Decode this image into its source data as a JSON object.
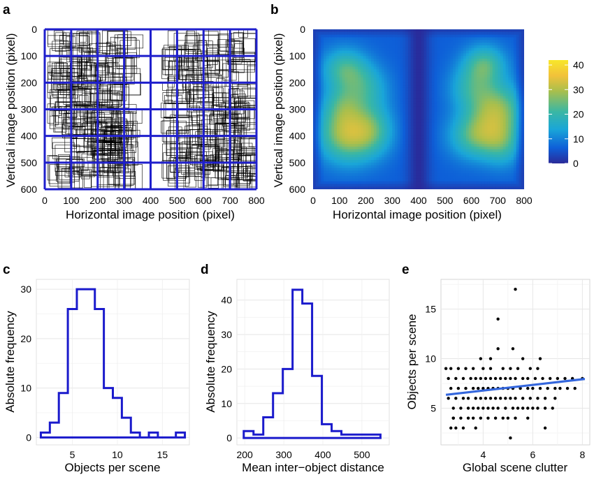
{
  "panel_labels": {
    "a": "a",
    "b": "b",
    "c": "c",
    "d": "d",
    "e": "e"
  },
  "colorbar": {
    "ticks": [
      "40",
      "30",
      "20",
      "10",
      "0"
    ],
    "max": 42
  },
  "chart_data": [
    {
      "panel": "a",
      "type": "scatter",
      "xlabel": "Horizontal image position (pixel)",
      "ylabel": "Vertical image position (pixel)",
      "xlim": [
        0,
        800
      ],
      "ylim": [
        600,
        0
      ],
      "xticks": [
        "0",
        "100",
        "200",
        "300",
        "400",
        "500",
        "600",
        "700",
        "800"
      ],
      "yticks": [
        "0",
        "100",
        "200",
        "300",
        "400",
        "500",
        "600"
      ],
      "grid_columns": [
        0,
        100,
        200,
        300,
        400,
        500,
        600,
        700,
        800
      ],
      "grid_rows": [
        0,
        100,
        200,
        300,
        400,
        500,
        600
      ],
      "grid_color": "#1f1fcc",
      "box_color": "#000000",
      "box_clusters": [
        {
          "x_range": [
            10,
            330
          ],
          "y_range": [
            0,
            580
          ]
        },
        {
          "x_range": [
            440,
            800
          ],
          "y_range": [
            0,
            590
          ]
        }
      ]
    },
    {
      "panel": "b",
      "type": "heatmap",
      "xlabel": "Horizontal image position (pixel)",
      "ylabel": "Vertical image position (pixel)",
      "xlim": [
        0,
        800
      ],
      "ylim": [
        600,
        0
      ],
      "xticks": [
        "0",
        "100",
        "200",
        "300",
        "400",
        "500",
        "600",
        "700",
        "800"
      ],
      "yticks": [
        "0",
        "100",
        "200",
        "300",
        "400",
        "500",
        "600"
      ],
      "value_range": [
        0,
        42
      ],
      "colorscale": [
        "#2a2a99",
        "#0e5fd8",
        "#1aa6d8",
        "#3ab7a4",
        "#a9bf4c",
        "#f2c23a",
        "#f8e72a"
      ],
      "hotspots": [
        {
          "x": 130,
          "y": 390,
          "sx": 75,
          "sy": 75,
          "value": 22
        },
        {
          "x": 120,
          "y": 150,
          "sx": 60,
          "sy": 55,
          "value": 14
        },
        {
          "x": 200,
          "y": 220,
          "sx": 60,
          "sy": 60,
          "value": 10
        },
        {
          "x": 230,
          "y": 380,
          "sx": 55,
          "sy": 65,
          "value": 10
        },
        {
          "x": 110,
          "y": 280,
          "sx": 50,
          "sy": 50,
          "value": 8
        },
        {
          "x": 650,
          "y": 130,
          "sx": 55,
          "sy": 50,
          "value": 14
        },
        {
          "x": 700,
          "y": 300,
          "sx": 70,
          "sy": 70,
          "value": 18
        },
        {
          "x": 620,
          "y": 400,
          "sx": 70,
          "sy": 60,
          "value": 16
        },
        {
          "x": 600,
          "y": 220,
          "sx": 60,
          "sy": 60,
          "value": 10
        },
        {
          "x": 720,
          "y": 430,
          "sx": 50,
          "sy": 60,
          "value": 10
        }
      ]
    },
    {
      "panel": "c",
      "type": "histogram",
      "xlabel": "Objects per scene",
      "ylabel": "Absolute frequency",
      "xlim": [
        1,
        18
      ],
      "ylim": [
        -1.5,
        32
      ],
      "xticks": [
        "5",
        "10",
        "15"
      ],
      "yticks": [
        "0",
        "10",
        "20",
        "30"
      ],
      "bin_width": 1,
      "bin_centers": [
        2,
        3,
        4,
        5,
        6,
        7,
        8,
        9,
        10,
        11,
        12,
        13,
        14,
        15,
        16,
        17
      ],
      "counts": [
        1,
        3,
        9,
        26,
        30,
        30,
        26,
        10,
        8,
        4,
        1,
        0,
        1,
        0,
        0,
        1
      ],
      "color": "#1a1acc"
    },
    {
      "panel": "d",
      "type": "histogram",
      "xlabel": "Mean inter−object distance",
      "ylabel": "Absolute frequency",
      "xlim": [
        180,
        570
      ],
      "ylim": [
        -2,
        46
      ],
      "xticks": [
        "200",
        "300",
        "400",
        "500"
      ],
      "yticks": [
        "0",
        "10",
        "20",
        "30",
        "40"
      ],
      "bin_width": 25,
      "bin_centers": [
        210,
        235,
        260,
        285,
        310,
        335,
        360,
        385,
        410,
        435,
        460,
        485,
        510,
        535
      ],
      "counts": [
        2,
        1,
        6,
        13,
        20,
        43,
        39,
        18,
        4,
        2,
        1,
        1,
        1,
        1
      ],
      "color": "#1a1acc"
    },
    {
      "panel": "e",
      "type": "scatter",
      "xlabel": "Global scene clutter",
      "ylabel": "Objects per scene",
      "xlim": [
        2.3,
        8.3
      ],
      "ylim": [
        1.3,
        18
      ],
      "xticks": [
        "4",
        "6",
        "8"
      ],
      "yticks": [
        "5",
        "10",
        "15"
      ],
      "fit_line": {
        "x": [
          2.5,
          8.1
        ],
        "y": [
          6.35,
          7.95
        ],
        "color": "#3366dd"
      },
      "points": [
        [
          5.3,
          17
        ],
        [
          4.6,
          14
        ],
        [
          5.1,
          2
        ],
        [
          6.5,
          3
        ],
        [
          2.7,
          3
        ],
        [
          2.8,
          4
        ],
        [
          4.6,
          11
        ],
        [
          5.2,
          11
        ],
        [
          5.6,
          10
        ],
        [
          4.3,
          10
        ],
        [
          3.9,
          10
        ],
        [
          6.3,
          10
        ],
        [
          2.5,
          9
        ],
        [
          2.7,
          9
        ],
        [
          3.0,
          9
        ],
        [
          3.3,
          9
        ],
        [
          3.6,
          9
        ],
        [
          4.0,
          9
        ],
        [
          4.3,
          9
        ],
        [
          4.8,
          9
        ],
        [
          5.1,
          9
        ],
        [
          5.4,
          9
        ],
        [
          5.9,
          9
        ],
        [
          6.2,
          9
        ],
        [
          2.6,
          8
        ],
        [
          2.9,
          8
        ],
        [
          3.2,
          8
        ],
        [
          3.5,
          8
        ],
        [
          3.7,
          8
        ],
        [
          3.9,
          8
        ],
        [
          4.1,
          8
        ],
        [
          4.3,
          8
        ],
        [
          4.5,
          8
        ],
        [
          4.7,
          8
        ],
        [
          4.9,
          8
        ],
        [
          5.1,
          8
        ],
        [
          5.3,
          8
        ],
        [
          5.6,
          8
        ],
        [
          5.8,
          8
        ],
        [
          6.1,
          8
        ],
        [
          6.4,
          8
        ],
        [
          6.7,
          8
        ],
        [
          7.0,
          8
        ],
        [
          7.3,
          8
        ],
        [
          7.6,
          8
        ],
        [
          8.0,
          8
        ],
        [
          2.7,
          7
        ],
        [
          3.0,
          7
        ],
        [
          3.3,
          7
        ],
        [
          3.6,
          7
        ],
        [
          3.8,
          7
        ],
        [
          4.0,
          7
        ],
        [
          4.2,
          7
        ],
        [
          4.4,
          7
        ],
        [
          4.6,
          7
        ],
        [
          4.8,
          7
        ],
        [
          5.0,
          7
        ],
        [
          5.2,
          7
        ],
        [
          5.5,
          7
        ],
        [
          5.8,
          7
        ],
        [
          6.0,
          7
        ],
        [
          6.3,
          7
        ],
        [
          6.6,
          7
        ],
        [
          6.9,
          7
        ],
        [
          7.1,
          7
        ],
        [
          7.4,
          7
        ],
        [
          7.7,
          7
        ],
        [
          2.6,
          6
        ],
        [
          2.9,
          6
        ],
        [
          3.2,
          6
        ],
        [
          3.4,
          6
        ],
        [
          3.7,
          6
        ],
        [
          3.9,
          6
        ],
        [
          4.1,
          6
        ],
        [
          4.3,
          6
        ],
        [
          4.5,
          6
        ],
        [
          4.7,
          6
        ],
        [
          4.9,
          6
        ],
        [
          5.1,
          6
        ],
        [
          5.3,
          6
        ],
        [
          5.6,
          6
        ],
        [
          5.9,
          6
        ],
        [
          6.2,
          6
        ],
        [
          6.5,
          6
        ],
        [
          6.9,
          6
        ],
        [
          2.8,
          5
        ],
        [
          3.1,
          5
        ],
        [
          3.4,
          5
        ],
        [
          3.6,
          5
        ],
        [
          3.8,
          5
        ],
        [
          4.0,
          5
        ],
        [
          4.2,
          5
        ],
        [
          4.4,
          5
        ],
        [
          4.6,
          5
        ],
        [
          4.9,
          5
        ],
        [
          5.2,
          5
        ],
        [
          5.4,
          5
        ],
        [
          5.6,
          5
        ],
        [
          5.8,
          5
        ],
        [
          6.0,
          5
        ],
        [
          6.2,
          5
        ],
        [
          6.5,
          5
        ],
        [
          6.8,
          5
        ],
        [
          2.8,
          4
        ],
        [
          3.1,
          4
        ],
        [
          3.4,
          4
        ],
        [
          3.6,
          4
        ],
        [
          3.9,
          4
        ],
        [
          4.2,
          4
        ],
        [
          4.5,
          4
        ],
        [
          4.8,
          4
        ],
        [
          5.0,
          4
        ],
        [
          5.3,
          4
        ],
        [
          5.8,
          4
        ],
        [
          2.9,
          3
        ],
        [
          3.2,
          3
        ],
        [
          3.7,
          3
        ]
      ]
    }
  ]
}
